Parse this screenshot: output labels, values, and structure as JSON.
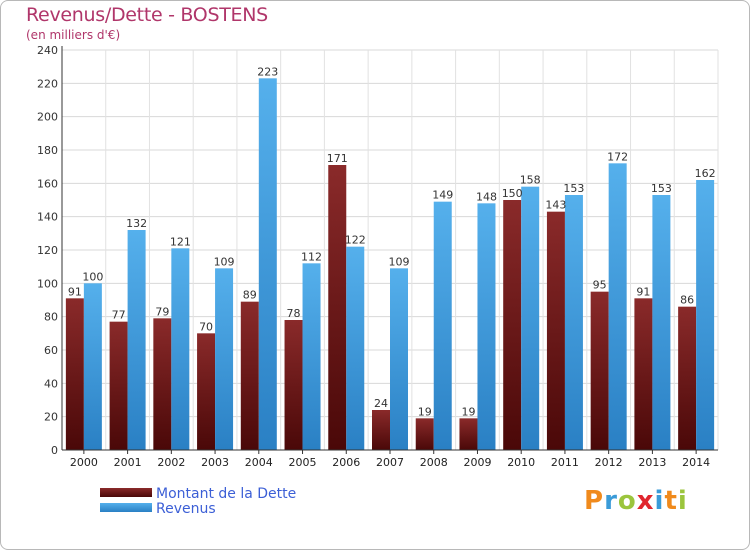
{
  "title": "Revenus/Dette - BOSTENS",
  "subtitle": "(en milliers d'€)",
  "brand_letters": [
    {
      "ch": "P",
      "color": "#f08a1c"
    },
    {
      "ch": "r",
      "color": "#3a9bd8"
    },
    {
      "ch": "o",
      "color": "#9bc53d"
    },
    {
      "ch": "x",
      "color": "#e0262e"
    },
    {
      "ch": "i",
      "color": "#3a9bd8"
    },
    {
      "ch": "t",
      "color": "#f08a1c"
    },
    {
      "ch": "i",
      "color": "#9bc53d"
    }
  ],
  "chart_data": {
    "type": "bar",
    "categories": [
      "2000",
      "2001",
      "2002",
      "2003",
      "2004",
      "2005",
      "2006",
      "2007",
      "2008",
      "2009",
      "2010",
      "2011",
      "2012",
      "2013",
      "2014"
    ],
    "series": [
      {
        "name": "Montant de la Dette",
        "color": "#7a1e1e",
        "values": [
          91,
          77,
          79,
          70,
          89,
          78,
          171,
          24,
          19,
          19,
          150,
          143,
          95,
          91,
          86
        ]
      },
      {
        "name": "Revenus",
        "color": "#3b9ee0",
        "values": [
          100,
          132,
          121,
          109,
          223,
          112,
          122,
          109,
          149,
          148,
          158,
          153,
          172,
          153,
          162
        ]
      }
    ],
    "ylim": [
      0,
      240
    ],
    "yticks": [
      0,
      20,
      40,
      60,
      80,
      100,
      120,
      140,
      160,
      180,
      200,
      220,
      240
    ],
    "grid": true,
    "legend_position": "bottom-left"
  }
}
